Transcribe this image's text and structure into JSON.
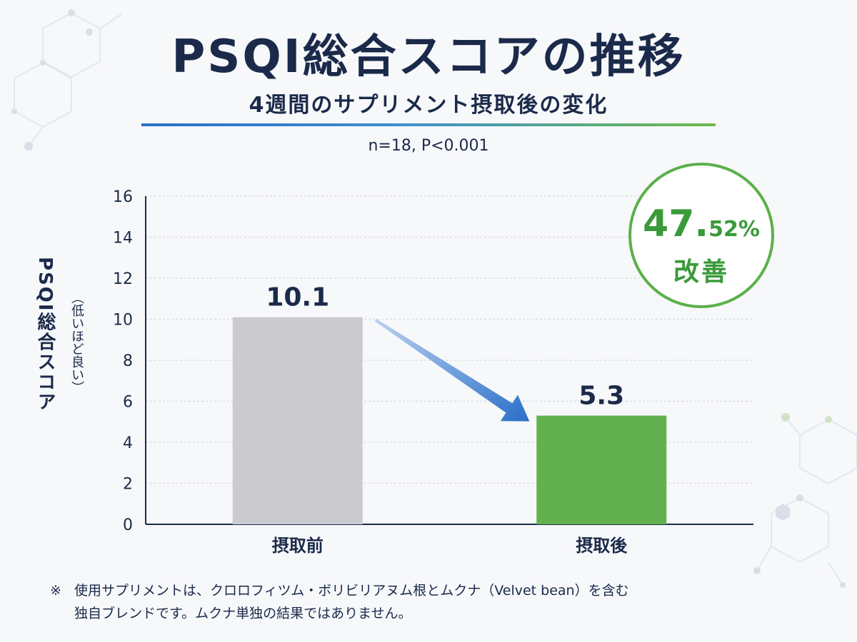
{
  "title": "PSQI総合スコアの推移",
  "subtitle": "4週間のサプリメント摂取後の変化",
  "stats": "n=18, P<0.001",
  "badge": {
    "value_int": "47.",
    "value_dec": "52%",
    "label": "改善"
  },
  "footnote": {
    "mark": "※",
    "line1": "使用サプリメントは、クロロフィツム・ボリビリアヌム根とムクナ（Velvet bean）を含む",
    "line2": "独自ブレンドです。ムクナ単独の結果ではありません。"
  },
  "colors": {
    "bar_before": "#cbcbcf",
    "bar_after": "#62b14f",
    "arrow": "#2a6fc9",
    "badge_green": "#3a9a3a",
    "text_navy": "#1b2a4a"
  },
  "chart_data": {
    "type": "bar",
    "categories": [
      "摂取前",
      "摂取後"
    ],
    "values": [
      10.1,
      5.3
    ],
    "data_labels": [
      "10.1",
      "5.3"
    ],
    "ylabel": "PSQI総合スコア",
    "ylabel_note": "（低いほど良い）",
    "ylim": [
      0,
      16
    ],
    "yticks": [
      0,
      2,
      4,
      6,
      8,
      10,
      12,
      14,
      16
    ],
    "grid": true,
    "legend": "none"
  }
}
